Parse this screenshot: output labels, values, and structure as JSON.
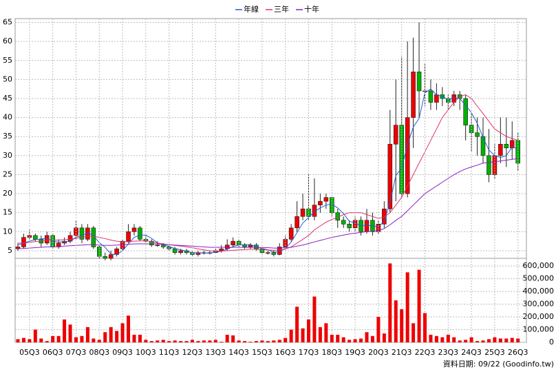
{
  "chart_data": [
    {
      "type": "candlestick",
      "legend": [
        {
          "name": "年線",
          "color": "#1f5fd6"
        },
        {
          "name": "三年",
          "color": "#e0306a"
        },
        {
          "name": "十年",
          "color": "#8a1fc0"
        }
      ],
      "up_color": "#ee0000",
      "down_color": "#00b000",
      "open": [
        5.5,
        6,
        8.5,
        9,
        8,
        7,
        9,
        6,
        7,
        7.5,
        9,
        11,
        8,
        11,
        6,
        3.5,
        3,
        4,
        5.5,
        7.5,
        10,
        11,
        8,
        7.5,
        6.5,
        6.5,
        6,
        5.5,
        4.5,
        5,
        4.5,
        4,
        4.5,
        4.5,
        4.5,
        5,
        5.5,
        6.5,
        7.5,
        6.5,
        6,
        6.5,
        5.5,
        4.5,
        4.5,
        4,
        6,
        8,
        11,
        14,
        16,
        14,
        17,
        18,
        19,
        15,
        13,
        12,
        11,
        13,
        10,
        13,
        10,
        12,
        16,
        33,
        38,
        20,
        40,
        52,
        47,
        47,
        44,
        46,
        45,
        44,
        46,
        45,
        38,
        36,
        35,
        30,
        25,
        30,
        33,
        32,
        34
      ],
      "high": [
        7,
        9.5,
        10.5,
        9.5,
        9,
        10,
        9.5,
        8,
        8.5,
        10,
        13,
        12,
        12,
        11.5,
        6.5,
        4.5,
        5,
        6,
        8,
        12,
        12,
        11.5,
        9,
        8,
        7.5,
        7,
        6.5,
        6,
        5.5,
        5.5,
        5,
        5,
        5,
        5,
        5.5,
        6.5,
        8,
        8.5,
        8,
        7,
        7,
        7,
        6,
        5,
        5,
        7,
        9,
        12,
        18,
        20,
        25,
        24,
        20,
        20,
        19,
        16,
        14,
        13,
        14,
        14,
        16,
        15,
        13,
        18,
        42,
        50,
        56,
        60,
        61,
        65,
        54,
        50,
        49,
        48,
        46,
        47,
        47,
        46,
        41,
        40,
        40,
        37,
        33,
        40,
        40,
        39,
        36
      ],
      "low": [
        5,
        5.5,
        8,
        7.5,
        6,
        6.5,
        5.5,
        5.5,
        6.5,
        7,
        8,
        7,
        7.5,
        5.5,
        3,
        2.5,
        2.5,
        3.5,
        5,
        7,
        9,
        7.5,
        7,
        6,
        6,
        5.5,
        5,
        4,
        4,
        4,
        3.5,
        3.5,
        4,
        4,
        4.5,
        4.5,
        5,
        6,
        6,
        5.5,
        5.5,
        5,
        4,
        4,
        3.5,
        3.8,
        5.5,
        7.5,
        10,
        13,
        13,
        13,
        15,
        16,
        14,
        11,
        11,
        10,
        10,
        9,
        9.5,
        9,
        9.5,
        11,
        15,
        18,
        19,
        19,
        32,
        40,
        43,
        42,
        42,
        43,
        42,
        43,
        42,
        34,
        31,
        30,
        28,
        23,
        24,
        28,
        27,
        29,
        26
      ],
      "close": [
        6,
        8.5,
        9,
        8,
        7,
        9,
        6,
        7,
        7.5,
        9,
        11,
        8,
        11,
        6,
        3.5,
        3,
        4,
        5.5,
        7.5,
        10,
        11,
        8,
        7.5,
        6.5,
        6.5,
        6,
        5.5,
        4.5,
        5,
        4.5,
        4,
        4.5,
        4.5,
        4.5,
        5,
        5.5,
        6.5,
        7.5,
        6.5,
        6,
        6.5,
        5.5,
        4.5,
        4.5,
        4,
        6,
        8,
        11,
        14,
        16,
        14,
        17,
        18,
        19,
        15,
        13,
        12,
        11,
        13,
        10,
        13,
        10,
        12,
        16,
        33,
        38,
        20,
        40,
        52,
        47,
        47,
        44,
        46,
        45,
        44,
        46,
        45,
        38,
        36,
        35,
        30,
        25,
        30,
        33,
        32,
        34,
        28
      ],
      "lines": [
        {
          "values": [
            6.5,
            7,
            7.5,
            7.9,
            8.1,
            8.25,
            7.5,
            7.25,
            7.4,
            7.4,
            8.6,
            8.9,
            9.75,
            9,
            7.1,
            5.9,
            4.1,
            4,
            5,
            6.75,
            8.5,
            9.1,
            9.1,
            8.25,
            7.1,
            6.6,
            6.1,
            5.6,
            5.25,
            4.9,
            4.5,
            4.5,
            4.4,
            4.4,
            4.6,
            4.9,
            5.4,
            6.1,
            6.5,
            6.6,
            6.6,
            6.1,
            5.6,
            5.25,
            4.6,
            4.75,
            5.6,
            7.25,
            9.75,
            12.25,
            13.75,
            15.25,
            16.25,
            17,
            17.25,
            16.25,
            14.75,
            12.75,
            12.25,
            11.5,
            11.75,
            11.5,
            11.25,
            12.75,
            17.75,
            24.75,
            26.75,
            32.75,
            37.5,
            39.75,
            46.5,
            47.5,
            46,
            45.5,
            44.75,
            45.25,
            45,
            43.25,
            41.25,
            38.5,
            34.75,
            31.5,
            30,
            29.5,
            30,
            32.25,
            31.75
          ]
        },
        {
          "values": [
            7,
            7,
            7.2,
            7.4,
            7.6,
            7.8,
            7.8,
            7.8,
            7.9,
            8,
            8.3,
            8.5,
            8.8,
            8.8,
            8.5,
            8.2,
            7.8,
            7.5,
            7.3,
            7.4,
            7.5,
            7.6,
            7.6,
            7.4,
            7,
            6.8,
            6.6,
            6.4,
            6.2,
            6,
            5.8,
            5.5,
            5.2,
            5,
            4.9,
            4.9,
            5,
            5.1,
            5.2,
            5.3,
            5.4,
            5.4,
            5.3,
            5.2,
            5.1,
            5.2,
            5.4,
            6,
            7,
            8,
            9,
            10.5,
            11.5,
            12.5,
            13.2,
            13.8,
            14.5,
            15,
            15,
            15,
            14.5,
            14,
            13.5,
            13.8,
            15,
            17,
            19,
            22,
            25,
            28,
            31,
            34,
            37,
            40,
            42,
            44,
            45.5,
            46,
            45,
            43,
            41,
            39,
            37,
            36,
            35,
            34.5,
            34
          ]
        },
        {
          "values": [
            5.5,
            5.6,
            5.7,
            5.8,
            5.9,
            6,
            6,
            6.1,
            6.2,
            6.3,
            6.4,
            6.5,
            6.6,
            6.6,
            6.5,
            6.4,
            6.4,
            6.5,
            6.6,
            6.7,
            6.8,
            6.8,
            6.8,
            6.8,
            6.8,
            6.7,
            6.6,
            6.5,
            6.4,
            6.3,
            6.2,
            6.1,
            6,
            5.9,
            5.9,
            5.9,
            5.9,
            5.9,
            5.9,
            5.9,
            5.9,
            5.9,
            5.8,
            5.8,
            5.7,
            5.7,
            5.8,
            5.9,
            6.2,
            6.5,
            6.9,
            7.3,
            7.7,
            8.1,
            8.5,
            8.8,
            9.1,
            9.4,
            9.6,
            9.8,
            10,
            10.1,
            10.3,
            10.8,
            11.8,
            13,
            14,
            15.5,
            17,
            18.5,
            20,
            21,
            22,
            23,
            24,
            25,
            25.8,
            26.5,
            27,
            27.5,
            28,
            28.2,
            28.4,
            28.6,
            28.8,
            29,
            29.2
          ]
        }
      ],
      "ylim": [
        3,
        66
      ],
      "yticks": [
        5,
        10,
        15,
        20,
        25,
        30,
        35,
        40,
        45,
        50,
        55,
        60,
        65
      ],
      "grid": true
    },
    {
      "type": "bar",
      "color": "#ee0000",
      "note": "資料日期: 09/22 (Goodinfo.tw)",
      "categories": [
        null,
        null,
        "05Q3",
        null,
        null,
        null,
        "06Q3",
        null,
        null,
        null,
        "07Q3",
        null,
        null,
        null,
        "08Q3",
        null,
        null,
        null,
        "09Q3",
        null,
        null,
        null,
        "10Q3",
        null,
        null,
        null,
        "11Q3",
        null,
        null,
        null,
        "12Q3",
        null,
        null,
        null,
        "13Q3",
        null,
        null,
        null,
        "14Q3",
        null,
        null,
        null,
        "15Q3",
        null,
        null,
        null,
        "16Q3",
        null,
        null,
        null,
        "17Q3",
        null,
        null,
        null,
        "18Q3",
        null,
        null,
        null,
        "19Q3",
        null,
        null,
        null,
        "20Q3",
        null,
        null,
        null,
        "21Q3",
        null,
        null,
        null,
        "22Q3",
        null,
        null,
        null,
        "23Q3",
        null,
        null,
        null,
        "24Q3",
        null,
        null,
        null,
        "25Q3",
        null,
        null,
        null,
        "26Q3"
      ],
      "values": [
        25000,
        35000,
        25000,
        100000,
        30000,
        10000,
        50000,
        50000,
        180000,
        140000,
        40000,
        50000,
        120000,
        30000,
        20000,
        80000,
        120000,
        90000,
        150000,
        210000,
        60000,
        60000,
        20000,
        10000,
        15000,
        20000,
        10000,
        15000,
        10000,
        10000,
        20000,
        10000,
        15000,
        15000,
        20000,
        5000,
        60000,
        55000,
        15000,
        10000,
        5000,
        10000,
        15000,
        10000,
        15000,
        20000,
        35000,
        100000,
        280000,
        110000,
        180000,
        360000,
        120000,
        150000,
        60000,
        60000,
        40000,
        20000,
        25000,
        30000,
        80000,
        50000,
        200000,
        70000,
        620000,
        330000,
        260000,
        550000,
        150000,
        570000,
        230000,
        60000,
        50000,
        40000,
        60000,
        40000,
        15000,
        20000,
        40000,
        10000,
        15000,
        25000,
        40000,
        30000,
        30000,
        35000,
        30000
      ],
      "ylim": [
        0,
        660000
      ],
      "yticks": [
        0,
        {
          "value": 100000,
          "label": "100,000"
        },
        {
          "value": 200000,
          "label": "200,000"
        },
        {
          "value": 300000,
          "label": "300,000"
        },
        {
          "value": 400000,
          "label": "400,000"
        },
        {
          "value": 500000,
          "label": "500,000"
        },
        {
          "value": 600000,
          "label": "600,000"
        }
      ],
      "grid": true
    }
  ]
}
